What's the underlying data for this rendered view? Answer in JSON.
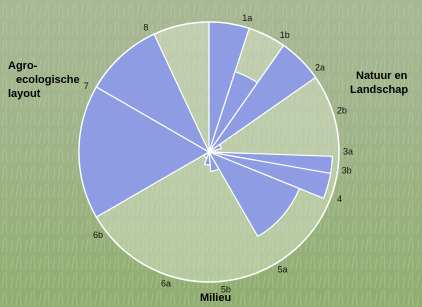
{
  "chart_data": {
    "type": "polar-area",
    "categories": [
      "1a",
      "1b",
      "2a",
      "2b",
      "3a",
      "3b",
      "4",
      "5a",
      "5b",
      "6a",
      "6b",
      "7",
      "8"
    ],
    "values": [
      100,
      65,
      100,
      10,
      5,
      95,
      95,
      75,
      15,
      10,
      5,
      100,
      100
    ],
    "ylim": [
      0,
      100
    ],
    "color": "#8e9ce3",
    "groups": [
      [
        "Agro-",
        "ecologische",
        "layout"
      ],
      [
        "Natuur en",
        "Landschap"
      ],
      [
        "Milieu"
      ]
    ]
  }
}
